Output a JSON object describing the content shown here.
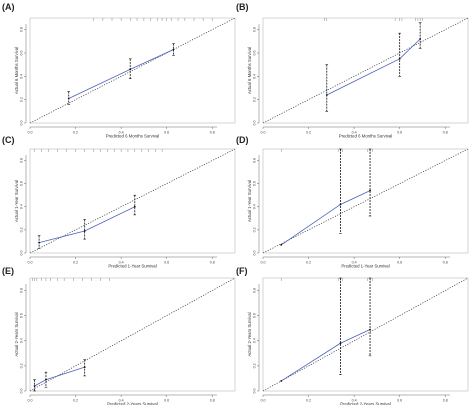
{
  "figure": {
    "panels": [
      {
        "label": "(A)",
        "xlabel": "Predicted 6 Months Survival",
        "ylabel": "Actual 6 Months Survival",
        "xticks": [
          "0.0",
          "0.2",
          "0.4",
          "0.6",
          "0.8"
        ],
        "yticks": [
          "0.0",
          "0.2",
          "0.4",
          "0.6",
          "0.8"
        ]
      },
      {
        "label": "(B)",
        "xlabel": "Predicted 6 Months Survival",
        "ylabel": "Actual 6 Months Survival",
        "xticks": [
          "0.0",
          "0.2",
          "0.4",
          "0.6",
          "0.8"
        ],
        "yticks": [
          "0.0",
          "0.2",
          "0.4",
          "0.6",
          "0.8"
        ]
      },
      {
        "label": "(C)",
        "xlabel": "Predicted 1-Year Survival",
        "ylabel": "Actual 1-Year Survival",
        "xticks": [
          "0.0",
          "0.2",
          "0.4",
          "0.6",
          "0.8"
        ],
        "yticks": [
          "0.0",
          "0.2",
          "0.4",
          "0.6",
          "0.8"
        ]
      },
      {
        "label": "(D)",
        "xlabel": "Predicted 1-Year Survival",
        "ylabel": "Actual 1-Year Survival",
        "xticks": [
          "0.0",
          "0.2",
          "0.4",
          "0.6",
          "0.8"
        ],
        "yticks": [
          "0.0",
          "0.2",
          "0.4",
          "0.6",
          "0.8"
        ]
      },
      {
        "label": "(E)",
        "xlabel": "Predicted 2-Years Survival",
        "ylabel": "Actual 2-Years Survival",
        "xticks": [
          "0.0",
          "0.2",
          "0.4",
          "0.6",
          "0.8"
        ],
        "yticks": [
          "0.0",
          "0.2",
          "0.4",
          "0.6",
          "0.8"
        ]
      },
      {
        "label": "(F)",
        "xlabel": "Predicted 2-Years Survival",
        "ylabel": "Actual 2-Years Survival",
        "xticks": [
          "0.0",
          "0.2",
          "0.4",
          "0.6",
          "0.8"
        ],
        "yticks": [
          "0.0",
          "0.2",
          "0.4",
          "0.6",
          "0.8"
        ]
      }
    ]
  },
  "colors": {
    "calibration_line": "#4a5fc1",
    "reference_line": "#333333",
    "error_bar": "#111111",
    "axis": "#444444"
  },
  "chart_data": [
    {
      "type": "line",
      "panel": "(A)",
      "xlim": [
        0,
        0.9
      ],
      "ylim": [
        0,
        0.9
      ],
      "reference": "diagonal",
      "x": [
        0.17,
        0.44,
        0.63
      ],
      "y": [
        0.21,
        0.46,
        0.63
      ],
      "ci_low": [
        0.16,
        0.38,
        0.58
      ],
      "ci_high": [
        0.27,
        0.55,
        0.68
      ],
      "rug_x": [
        0.28,
        0.32,
        0.36,
        0.4,
        0.44,
        0.47,
        0.5,
        0.53,
        0.56,
        0.58,
        0.6,
        0.62,
        0.65,
        0.68,
        0.72,
        0.76,
        0.8
      ]
    },
    {
      "type": "line",
      "panel": "(B)",
      "xlim": [
        0,
        0.9
      ],
      "ylim": [
        0,
        0.9
      ],
      "reference": "diagonal",
      "x": [
        0.28,
        0.6,
        0.69
      ],
      "y": [
        0.24,
        0.55,
        0.72
      ],
      "ci_low": [
        0.1,
        0.4,
        0.64
      ],
      "ci_high": [
        0.5,
        0.77,
        0.86
      ],
      "rug_x": [
        0.27,
        0.28,
        0.58,
        0.6,
        0.61,
        0.67,
        0.68,
        0.69,
        0.7
      ]
    },
    {
      "type": "line",
      "panel": "(C)",
      "xlim": [
        0,
        0.9
      ],
      "ylim": [
        0,
        0.9
      ],
      "reference": "diagonal",
      "x": [
        0.04,
        0.24,
        0.46
      ],
      "y": [
        0.09,
        0.19,
        0.4
      ],
      "ci_low": [
        0.04,
        0.12,
        0.33
      ],
      "ci_high": [
        0.15,
        0.29,
        0.5
      ],
      "rug_x": [
        0.02,
        0.05,
        0.08,
        0.12,
        0.16,
        0.2,
        0.24,
        0.28,
        0.31,
        0.34,
        0.37,
        0.4,
        0.43,
        0.46,
        0.49,
        0.52,
        0.55,
        0.58
      ]
    },
    {
      "type": "line",
      "panel": "(D)",
      "xlim": [
        0,
        0.9
      ],
      "ylim": [
        0,
        0.9
      ],
      "reference": "diagonal",
      "x": [
        0.08,
        0.34,
        0.47
      ],
      "y": [
        0.07,
        0.42,
        0.54
      ],
      "ci_low": [
        0.07,
        0.17,
        0.32
      ],
      "ci_high": [
        0.07,
        0.9,
        0.9
      ],
      "rug_x": [
        0.08,
        0.33,
        0.34,
        0.35,
        0.46,
        0.47,
        0.48
      ]
    },
    {
      "type": "line",
      "panel": "(E)",
      "xlim": [
        0,
        0.9
      ],
      "ylim": [
        0,
        0.9
      ],
      "reference": "diagonal",
      "x": [
        0.02,
        0.07,
        0.24
      ],
      "y": [
        0.04,
        0.09,
        0.19
      ],
      "ci_low": [
        0.0,
        0.03,
        0.12
      ],
      "ci_high": [
        0.09,
        0.15,
        0.25
      ],
      "rug_x": [
        0.01,
        0.02,
        0.03,
        0.05,
        0.07,
        0.09,
        0.12,
        0.15,
        0.19,
        0.23,
        0.27,
        0.31,
        0.35
      ]
    },
    {
      "type": "line",
      "panel": "(F)",
      "xlim": [
        0,
        0.9
      ],
      "ylim": [
        0,
        0.9
      ],
      "reference": "diagonal",
      "x": [
        0.08,
        0.34,
        0.47
      ],
      "y": [
        0.08,
        0.38,
        0.49
      ],
      "ci_low": [
        0.08,
        0.13,
        0.28
      ],
      "ci_high": [
        0.08,
        0.9,
        0.9
      ],
      "rug_x": [
        0.08,
        0.33,
        0.34,
        0.35,
        0.46,
        0.47,
        0.48
      ]
    }
  ]
}
